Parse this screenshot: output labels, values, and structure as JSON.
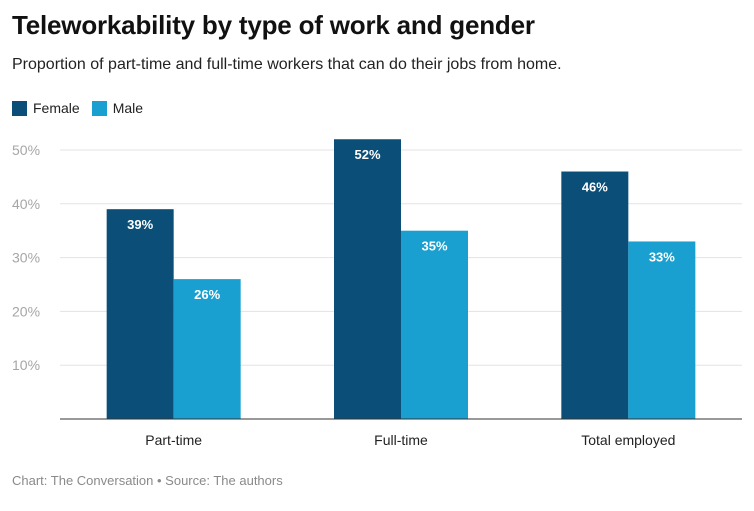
{
  "header": {
    "title": "Teleworkability by type of work and gender",
    "subtitle": "Proportion of part-time and full-time workers that can do their jobs from home."
  },
  "footer": {
    "text": "Chart: The Conversation • Source: The authors"
  },
  "chart_data": {
    "type": "bar",
    "title": "Teleworkability by type of work and gender",
    "subtitle": "Proportion of part-time and full-time workers that can do their jobs from home.",
    "categories": [
      "Part-time",
      "Full-time",
      "Total employed"
    ],
    "series": [
      {
        "name": "Female",
        "values": [
          39,
          52,
          46
        ],
        "labels": [
          "39%",
          "52%",
          "46%"
        ],
        "color": "#0b4f79"
      },
      {
        "name": "Male",
        "values": [
          26,
          35,
          33
        ],
        "labels": [
          "26%",
          "35%",
          "33%"
        ],
        "color": "#1aa0d0"
      }
    ],
    "ylim": [
      0,
      50
    ],
    "yticks": [
      10,
      20,
      30,
      40,
      50
    ],
    "ytick_labels": [
      "10%",
      "20%",
      "30%",
      "40%",
      "50%"
    ],
    "grid": true,
    "legend_position": "top-left"
  }
}
